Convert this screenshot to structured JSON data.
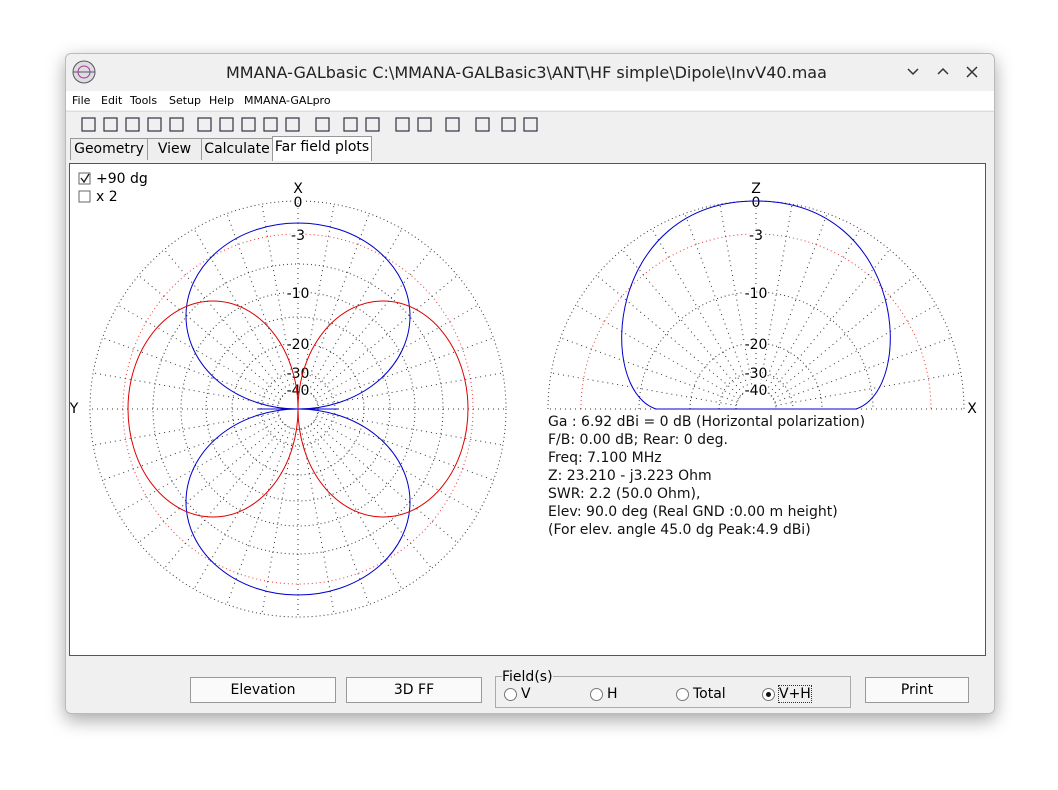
{
  "window": {
    "title": "MMANA-GALbasic C:\\MMANA-GALBasic3\\ANT\\HF simple\\Dipole\\InvV40.maa"
  },
  "menu": [
    "File",
    "Edit",
    "Tools",
    "Setup",
    "Help",
    "MMANA-GALpro"
  ],
  "tabs": [
    "Geometry",
    "View",
    "Calculate",
    "Far field plots"
  ],
  "options": [
    "+90 dg",
    "x 2"
  ],
  "left_plot": {
    "top_label": "X",
    "side_label": "Y",
    "ring_labels": [
      "0",
      "-3",
      "-10",
      "-20",
      "-30",
      "-40"
    ]
  },
  "right_plot": {
    "top_label": "Z",
    "side_label": "X",
    "ring_labels": [
      "0",
      "-3",
      "-10",
      "-20",
      "-30",
      "-40"
    ]
  },
  "info": [
    "Ga : 6.92 dBi = 0 dB  (Horizontal polarization)",
    "F/B: 0.00 dB; Rear: 0 deg.",
    "Freq: 7.100 MHz",
    "Z: 23.210 - j3.223 Ohm",
    "SWR: 2.2 (50.0 Ohm),",
    "Elev: 90.0 deg (Real GND  :0.00 m height)",
    "(For elev. angle 45.0 dg Peak:4.9 dBi)"
  ],
  "buttons": [
    "Elevation",
    "3D FF",
    "Print"
  ],
  "fields": {
    "legend": "Field(s)",
    "options": [
      "V",
      "H",
      "Total",
      "V+H"
    ]
  }
}
